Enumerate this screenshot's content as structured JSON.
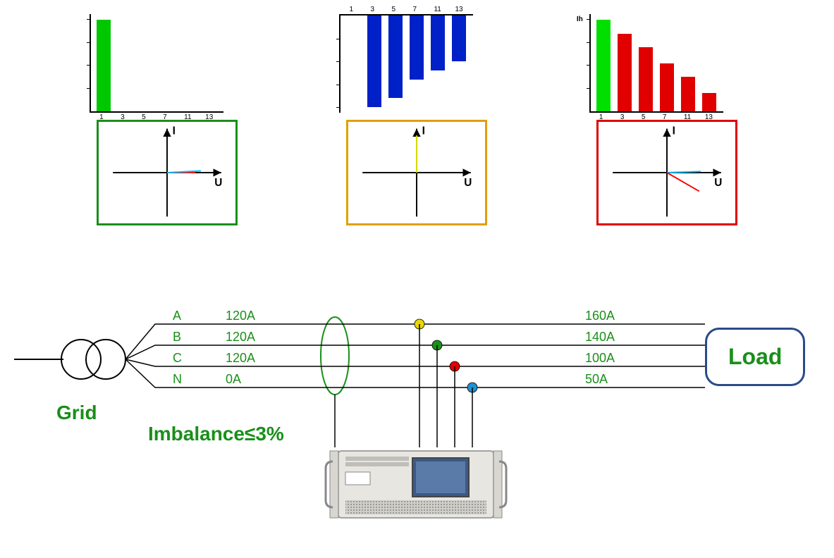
{
  "charts": {
    "left": {
      "type": "bar",
      "y_label": "",
      "categories": [
        "1",
        "3",
        "5",
        "7",
        "11",
        "13"
      ],
      "values": [
        100,
        0,
        0,
        0,
        0,
        0
      ],
      "bar_colors": [
        "#00c800",
        "#0020c8",
        "#0020c8",
        "#0020c8",
        "#0020c8",
        "#0020c8"
      ],
      "ylim_ticks": [
        25,
        50,
        75,
        100
      ]
    },
    "middle": {
      "type": "bar-down",
      "categories": [
        "1",
        "3",
        "5",
        "7",
        "11",
        "13"
      ],
      "values": [
        0,
        100,
        90,
        70,
        60,
        50
      ],
      "bar_colors": [
        "#00c800",
        "#0020c8",
        "#0020c8",
        "#0020c8",
        "#0020c8",
        "#0020c8"
      ],
      "ylim_ticks": [
        25,
        50,
        75,
        100
      ]
    },
    "right": {
      "type": "bar",
      "y_label": "Ih",
      "categories": [
        "1",
        "3",
        "5",
        "7",
        "11",
        "13"
      ],
      "values": [
        100,
        85,
        70,
        52,
        38,
        20
      ],
      "bar_colors": [
        "#00e000",
        "#e00000",
        "#e00000",
        "#e00000",
        "#e00000",
        "#e00000"
      ],
      "ylim_ticks": [
        25,
        50,
        75,
        100
      ]
    }
  },
  "phasors": {
    "left": {
      "border_color": "#1a8f1a",
      "i_label": "I",
      "u_label": "U",
      "vectors": [
        {
          "angle": 0,
          "len": 42,
          "color": "#ff0000"
        },
        {
          "angle": 3,
          "len": 50,
          "color": "#00c0ff"
        }
      ]
    },
    "middle": {
      "border_color": "#e0a000",
      "i_label": "I",
      "u_label": "U",
      "vectors": [
        {
          "angle": 90,
          "len": 55,
          "color": "#e0e000"
        }
      ]
    },
    "right": {
      "border_color": "#e00000",
      "i_label": "I",
      "u_label": "U",
      "vectors": [
        {
          "angle": 2,
          "len": 50,
          "color": "#00c0ff"
        },
        {
          "angle": -30,
          "len": 55,
          "color": "#ff0000"
        }
      ]
    }
  },
  "circuit": {
    "grid_label": "Grid",
    "load_label": "Load",
    "imbalance_label": "Imbalance≤3%",
    "phases": [
      {
        "name": "A",
        "grid_current": "120A",
        "load_current": "160A",
        "node_color": "#e8d800"
      },
      {
        "name": "B",
        "grid_current": "120A",
        "load_current": "140A",
        "node_color": "#1a8f1a"
      },
      {
        "name": "C",
        "grid_current": "120A",
        "load_current": "100A",
        "node_color": "#e00000"
      },
      {
        "name": "N",
        "grid_current": "0A",
        "load_current": "50A",
        "node_color": "#2090d0"
      }
    ]
  }
}
